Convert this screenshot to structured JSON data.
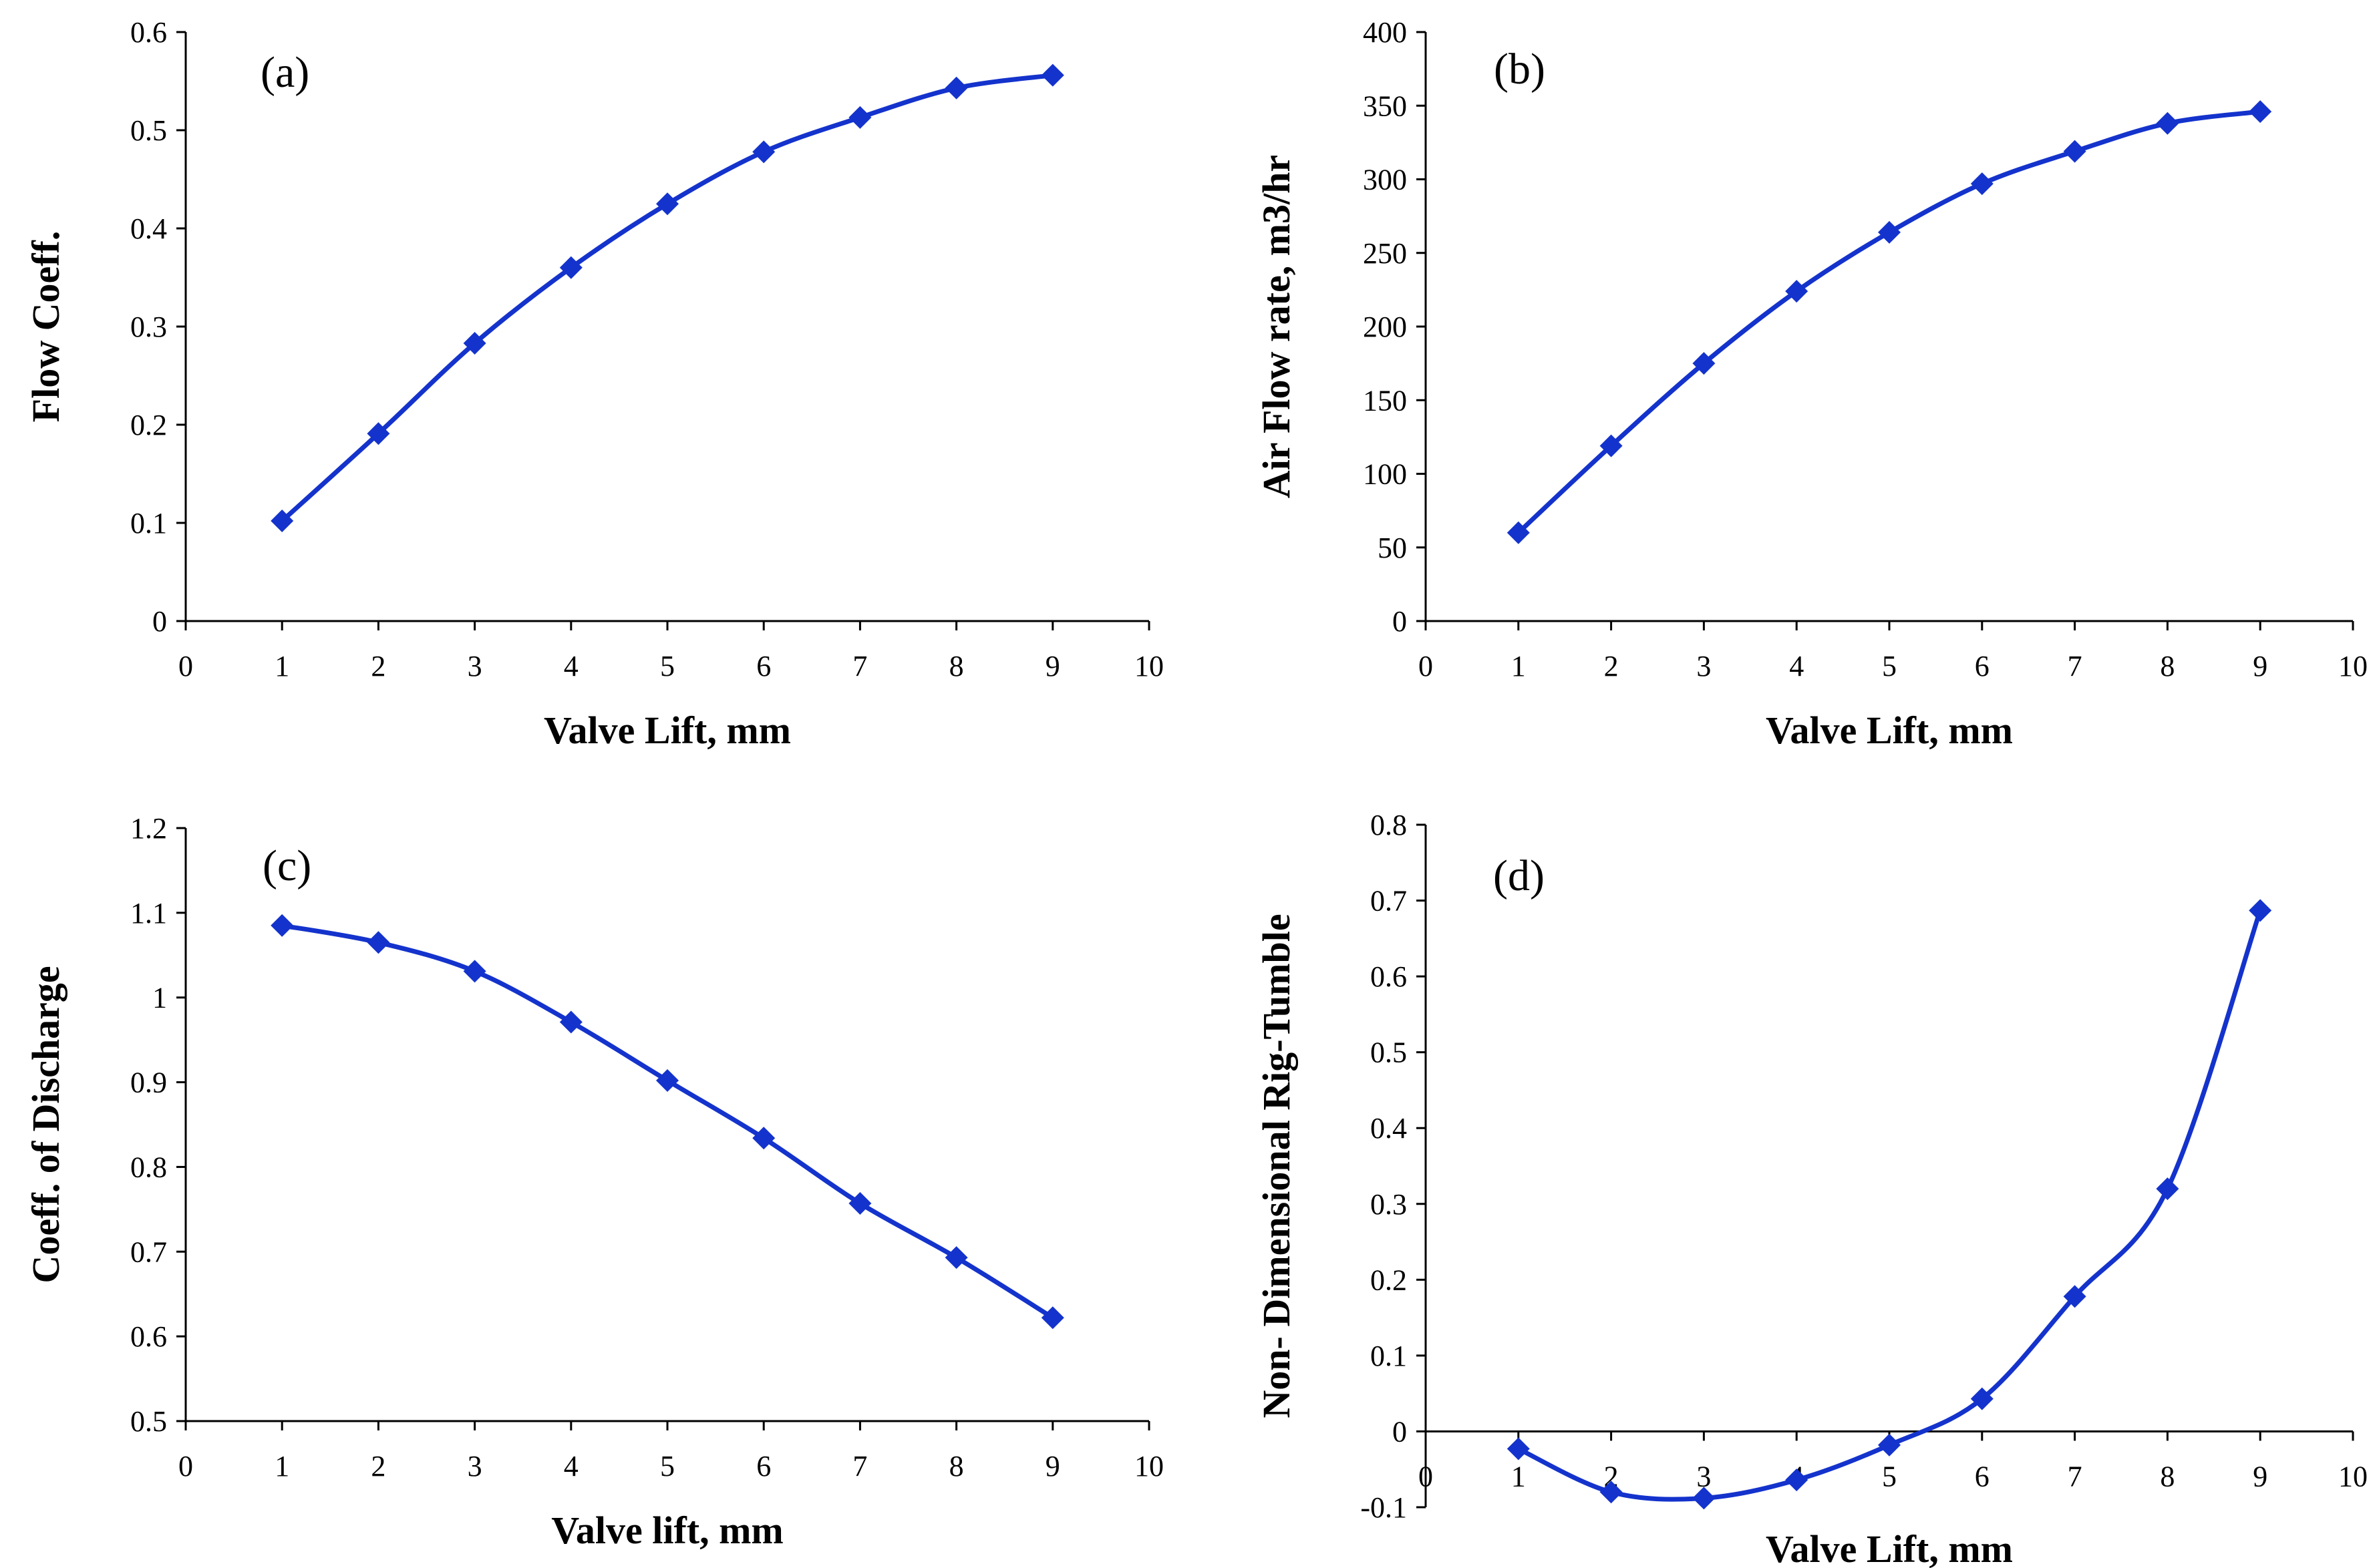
{
  "chart_data": [
    {
      "type": "line",
      "panel": "(a)",
      "title": "",
      "xlabel": "Valve Lift, mm",
      "ylabel": "Flow  Coeff.",
      "xlim": [
        0,
        10
      ],
      "ylim": [
        0,
        0.6
      ],
      "xticks": [
        0,
        1,
        2,
        3,
        4,
        5,
        6,
        7,
        8,
        9,
        10
      ],
      "yticks": [
        0,
        0.1,
        0.2,
        0.3,
        0.4,
        0.5,
        0.6
      ],
      "xtick_labels": [
        "0",
        "1",
        "2",
        "3",
        "4",
        "5",
        "6",
        "7",
        "8",
        "9",
        "10"
      ],
      "ytick_labels": [
        "0",
        "0.1",
        "0.2",
        "0.3",
        "0.4",
        "0.5",
        "0.6"
      ],
      "series": [
        {
          "name": "Flow Coeff.",
          "color": "#1433cc",
          "marker": "diamond",
          "x": [
            1,
            2,
            3,
            4,
            5,
            6,
            7,
            8,
            9
          ],
          "y": [
            0.102,
            0.191,
            0.283,
            0.36,
            0.425,
            0.478,
            0.513,
            0.543,
            0.556
          ]
        }
      ]
    },
    {
      "type": "line",
      "panel": "(b)",
      "title": "",
      "xlabel": "Valve Lift, mm",
      "ylabel": "Air Flow rate, m3/hr",
      "xlim": [
        0,
        10
      ],
      "ylim": [
        0,
        400
      ],
      "xticks": [
        0,
        1,
        2,
        3,
        4,
        5,
        6,
        7,
        8,
        9,
        10
      ],
      "yticks": [
        0,
        50,
        100,
        150,
        200,
        250,
        300,
        350,
        400
      ],
      "xtick_labels": [
        "0",
        "1",
        "2",
        "3",
        "4",
        "5",
        "6",
        "7",
        "8",
        "9",
        "10"
      ],
      "ytick_labels": [
        "0",
        "50",
        "100",
        "150",
        "200",
        "250",
        "300",
        "350",
        "400"
      ],
      "series": [
        {
          "name": "Air Flow rate",
          "color": "#1433cc",
          "marker": "diamond",
          "x": [
            1,
            2,
            3,
            4,
            5,
            6,
            7,
            8,
            9
          ],
          "y": [
            60,
            119,
            175,
            224,
            264,
            297,
            319,
            338,
            346
          ]
        }
      ]
    },
    {
      "type": "line",
      "panel": "(c)",
      "title": "",
      "xlabel": "Valve lift, mm",
      "ylabel": "Coeff. of Discharge",
      "xlim": [
        0,
        10
      ],
      "ylim": [
        0.5,
        1.2
      ],
      "xticks": [
        0,
        1,
        2,
        3,
        4,
        5,
        6,
        7,
        8,
        9,
        10
      ],
      "yticks": [
        0.5,
        0.6,
        0.7,
        0.8,
        0.9,
        1.0,
        1.1,
        1.2
      ],
      "xtick_labels": [
        "0",
        "1",
        "2",
        "3",
        "4",
        "5",
        "6",
        "7",
        "8",
        "9",
        "10"
      ],
      "ytick_labels": [
        "0.5",
        "0.6",
        "0.7",
        "0.8",
        "0.9",
        "1",
        "1.1",
        "1.2"
      ],
      "series": [
        {
          "name": "Coeff. of Discharge",
          "color": "#1433cc",
          "marker": "diamond",
          "x": [
            1,
            2,
            3,
            4,
            5,
            6,
            7,
            8,
            9
          ],
          "y": [
            1.085,
            1.065,
            1.031,
            0.971,
            0.902,
            0.834,
            0.757,
            0.693,
            0.622
          ]
        }
      ]
    },
    {
      "type": "line",
      "panel": "(d)",
      "title": "",
      "xlabel": "Valve Lift, mm",
      "ylabel": "Non- Dimensional Rig-Tumble",
      "xlim": [
        0,
        10
      ],
      "ylim": [
        -0.1,
        0.8
      ],
      "x_axis_at": 0,
      "xticks": [
        0,
        1,
        2,
        3,
        4,
        5,
        6,
        7,
        8,
        9,
        10
      ],
      "yticks": [
        -0.1,
        0,
        0.1,
        0.2,
        0.3,
        0.4,
        0.5,
        0.6,
        0.7,
        0.8
      ],
      "xtick_labels": [
        "0",
        "1",
        "2",
        "3",
        "4",
        "5",
        "6",
        "7",
        "8",
        "9",
        "10"
      ],
      "ytick_labels": [
        "-0.1",
        "0",
        "0.1",
        "0.2",
        "0.3",
        "0.4",
        "0.5",
        "0.6",
        "0.7",
        "0.8"
      ],
      "series": [
        {
          "name": "Non-Dimensional Rig-Tumble",
          "color": "#1433cc",
          "marker": "diamond",
          "x": [
            1,
            2,
            3,
            4,
            5,
            6,
            7,
            8,
            9
          ],
          "y": [
            -0.023,
            -0.08,
            -0.088,
            -0.064,
            -0.018,
            0.043,
            0.178,
            0.32,
            0.687
          ]
        }
      ]
    }
  ]
}
